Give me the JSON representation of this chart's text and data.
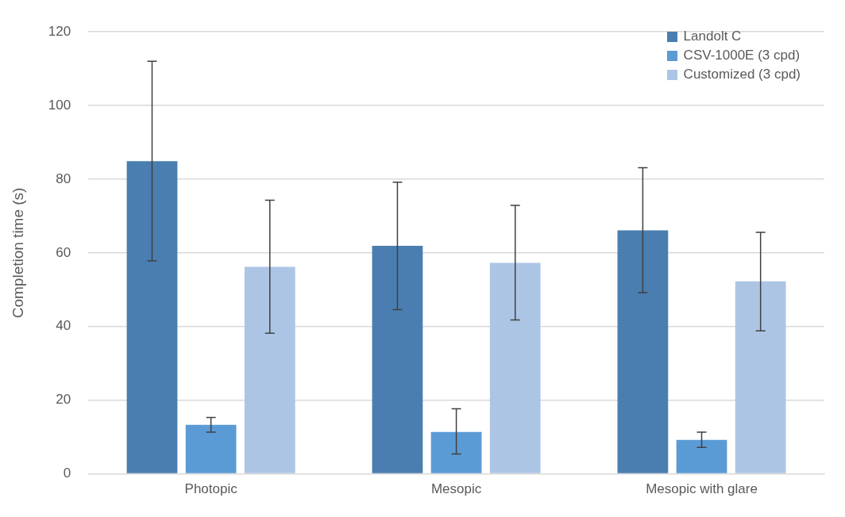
{
  "chart_data": {
    "type": "bar",
    "ylabel": "Completion time (s)",
    "categories": [
      "Photopic",
      "Mesopic",
      "Mesopic with glare"
    ],
    "series": [
      {
        "name": "Landolt C",
        "color": "#4a7eb0",
        "values": [
          84.9,
          61.9,
          66.1
        ],
        "errors": [
          [
            57.8,
            112.0
          ],
          [
            44.6,
            79.2
          ],
          [
            49.2,
            83.1
          ]
        ]
      },
      {
        "name": "CSV-1000E (3 cpd)",
        "color": "#5b9bd5",
        "values": [
          13.3,
          11.4,
          9.2
        ],
        "errors": [
          [
            11.3,
            15.3
          ],
          [
            5.4,
            17.7
          ],
          [
            7.2,
            11.3
          ]
        ]
      },
      {
        "name": "Customized (3 cpd)",
        "color": "#adc5e5",
        "values": [
          56.2,
          57.3,
          52.3
        ],
        "errors": [
          [
            38.2,
            74.3
          ],
          [
            41.8,
            72.9
          ],
          [
            38.8,
            65.6
          ]
        ]
      }
    ],
    "ylim": [
      0,
      120
    ],
    "yticks": [
      0,
      20,
      40,
      60,
      80,
      100,
      120
    ],
    "grid": "y",
    "legend": "top right"
  }
}
